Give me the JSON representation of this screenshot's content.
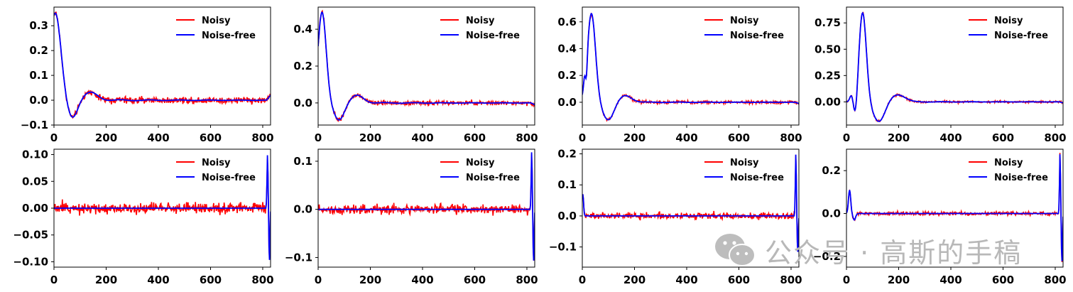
{
  "chart_data": [
    {
      "type": "line",
      "xlim": [
        0,
        830
      ],
      "ylim": [
        -0.1,
        0.375
      ],
      "xticks": [
        0,
        200,
        400,
        600,
        800
      ],
      "yticks": [
        -0.1,
        0.0,
        0.1,
        0.2,
        0.3
      ],
      "ytick_labels": [
        "−0.1",
        "0.0",
        "0.1",
        "0.2",
        "0.3"
      ],
      "legend_position": "top-right",
      "series": [
        {
          "name": "Noisy",
          "color": "#ff0000"
        },
        {
          "name": "Noise-free",
          "color": "#0000ff"
        }
      ],
      "signal": {
        "kind": "damped",
        "peaks": [
          [
            5,
            0.35,
            30
          ],
          [
            70,
            -0.07,
            28
          ],
          [
            140,
            0.03,
            40
          ]
        ],
        "end": 0.02
      },
      "noise": 0.012
    },
    {
      "type": "line",
      "xlim": [
        0,
        830
      ],
      "ylim": [
        -0.12,
        0.52
      ],
      "xticks": [
        0,
        200,
        400,
        600,
        800
      ],
      "yticks": [
        0.0,
        0.2,
        0.4
      ],
      "ytick_labels": [
        "0.0",
        "0.2",
        "0.4"
      ],
      "legend_position": "top-right",
      "series": [
        {
          "name": "Noisy",
          "color": "#ff0000"
        },
        {
          "name": "Noise-free",
          "color": "#0000ff"
        }
      ],
      "signal": {
        "kind": "damped",
        "peaks": [
          [
            15,
            0.49,
            22
          ],
          [
            80,
            -0.09,
            28
          ],
          [
            150,
            0.04,
            35
          ]
        ],
        "end": -0.01
      },
      "noise": 0.01
    },
    {
      "type": "line",
      "xlim": [
        0,
        830
      ],
      "ylim": [
        -0.17,
        0.71
      ],
      "xticks": [
        0,
        200,
        400,
        600,
        800
      ],
      "yticks": [
        0.0,
        0.2,
        0.4,
        0.6
      ],
      "ytick_labels": [
        "0.0",
        "0.2",
        "0.4",
        "0.6"
      ],
      "legend_position": "top-right",
      "series": [
        {
          "name": "Noisy",
          "color": "#ff0000"
        },
        {
          "name": "Noise-free",
          "color": "#0000ff"
        }
      ],
      "signal": {
        "kind": "damped",
        "peaks": [
          [
            8,
            0.05,
            5
          ],
          [
            16,
            -0.12,
            5
          ],
          [
            35,
            0.66,
            22
          ],
          [
            100,
            -0.13,
            30
          ],
          [
            165,
            0.05,
            35
          ]
        ],
        "end": -0.01
      },
      "noise": 0.01
    },
    {
      "type": "line",
      "xlim": [
        0,
        830
      ],
      "ylim": [
        -0.22,
        0.9
      ],
      "xticks": [
        0,
        200,
        400,
        600,
        800
      ],
      "yticks": [
        0.0,
        0.25,
        0.5,
        0.75
      ],
      "ytick_labels": [
        "0.00",
        "0.25",
        "0.50",
        "0.75"
      ],
      "legend_position": "top-right",
      "series": [
        {
          "name": "Noisy",
          "color": "#ff0000"
        },
        {
          "name": "Noise-free",
          "color": "#0000ff"
        }
      ],
      "signal": {
        "kind": "damped",
        "peaks": [
          [
            20,
            0.07,
            9
          ],
          [
            35,
            -0.2,
            11
          ],
          [
            62,
            0.85,
            20
          ],
          [
            125,
            -0.19,
            32
          ],
          [
            195,
            0.07,
            40
          ]
        ],
        "end": -0.01
      },
      "noise": 0.008
    },
    {
      "type": "line",
      "xlim": [
        0,
        830
      ],
      "ylim": [
        -0.11,
        0.11
      ],
      "xticks": [
        0,
        200,
        400,
        600,
        800
      ],
      "yticks": [
        -0.1,
        -0.05,
        0.0,
        0.05,
        0.1
      ],
      "ytick_labels": [
        "−0.10",
        "−0.05",
        "0.00",
        "0.05",
        "0.10"
      ],
      "legend_position": "top-right",
      "series": [
        {
          "name": "Noisy",
          "color": "#ff0000"
        },
        {
          "name": "Noise-free",
          "color": "#0000ff"
        }
      ],
      "signal": {
        "kind": "edge",
        "end_spike": [
          0.1,
          -0.1
        ]
      },
      "noise": 0.009
    },
    {
      "type": "line",
      "xlim": [
        0,
        830
      ],
      "ylim": [
        -0.12,
        0.125
      ],
      "xticks": [
        0,
        200,
        400,
        600,
        800
      ],
      "yticks": [
        -0.1,
        0.0,
        0.1
      ],
      "ytick_labels": [
        "−0.1",
        "0.0",
        "0.1"
      ],
      "legend_position": "top-right",
      "series": [
        {
          "name": "Noisy",
          "color": "#ff0000"
        },
        {
          "name": "Noise-free",
          "color": "#0000ff"
        }
      ],
      "signal": {
        "kind": "edge",
        "end_spike": [
          0.12,
          -0.11
        ]
      },
      "noise": 0.009
    },
    {
      "type": "line",
      "xlim": [
        0,
        830
      ],
      "ylim": [
        -0.165,
        0.215
      ],
      "xticks": [
        0,
        200,
        400,
        600,
        800
      ],
      "yticks": [
        -0.1,
        0.0,
        0.1,
        0.2
      ],
      "ytick_labels": [
        "−0.1",
        "0.0",
        "0.1",
        "0.2"
      ],
      "legend_position": "top-right",
      "series": [
        {
          "name": "Noisy",
          "color": "#ff0000"
        },
        {
          "name": "Noise-free",
          "color": "#0000ff"
        }
      ],
      "signal": {
        "kind": "edge",
        "start_spike": 0.07,
        "end_spike": [
          0.2,
          -0.12
        ]
      },
      "noise": 0.009
    },
    {
      "type": "line",
      "xlim": [
        0,
        830
      ],
      "ylim": [
        -0.25,
        0.3
      ],
      "xticks": [
        0,
        200,
        400,
        600,
        800
      ],
      "yticks": [
        -0.2,
        0.0,
        0.2
      ],
      "ytick_labels": [
        "−0.2",
        "0.0",
        "0.2"
      ],
      "legend_position": "top-right",
      "series": [
        {
          "name": "Noisy",
          "color": "#ff0000"
        },
        {
          "name": "Noise-free",
          "color": "#0000ff"
        }
      ],
      "signal": {
        "kind": "edge",
        "start_wave": [
          0.11,
          -0.03
        ],
        "end_spike": [
          0.28,
          -0.23
        ]
      },
      "noise": 0.007
    }
  ],
  "watermark": {
    "text": "公众号 · 高斯的手稿",
    "icon": "wechat-icon"
  }
}
